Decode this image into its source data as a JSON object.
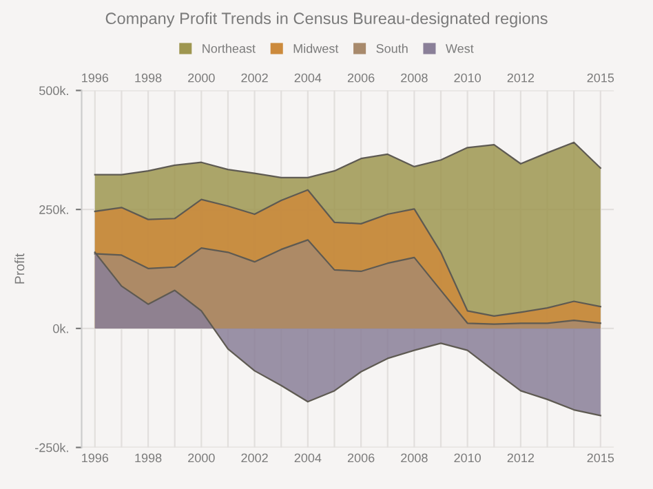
{
  "chart_data": {
    "type": "area",
    "title": "Company Profit Trends in Census Bureau-designated regions",
    "ylabel": "Profit",
    "categories": [
      "1996",
      null,
      "1998",
      null,
      "2000",
      null,
      "2002",
      null,
      "2004",
      null,
      "2006",
      null,
      "2008",
      null,
      "2010",
      null,
      "2012",
      null,
      null,
      "2015"
    ],
    "series": [
      {
        "name": "Northeast",
        "color": "#9e9650",
        "values": [
          323000,
          323000,
          331000,
          343000,
          349000,
          334000,
          326000,
          317000,
          317000,
          331000,
          357000,
          366000,
          340000,
          354000,
          380000,
          386000,
          346000,
          369000,
          391000,
          337000
        ]
      },
      {
        "name": "Midwest",
        "color": "#cc8a3c",
        "values": [
          246000,
          254000,
          229000,
          231000,
          271000,
          257000,
          240000,
          269000,
          291000,
          223000,
          220000,
          240000,
          251000,
          160000,
          37000,
          26000,
          34000,
          43000,
          57000,
          46000
        ]
      },
      {
        "name": "South",
        "color": "#a88a6c",
        "values": [
          157000,
          154000,
          126000,
          129000,
          169000,
          160000,
          140000,
          166000,
          186000,
          123000,
          120000,
          137000,
          149000,
          80000,
          11000,
          9000,
          11000,
          11000,
          17000,
          11000
        ]
      },
      {
        "name": "West",
        "color": "#8a7f98",
        "values": [
          160000,
          89000,
          51000,
          80000,
          37000,
          -43000,
          -89000,
          -120000,
          -154000,
          -131000,
          -91000,
          -63000,
          -46000,
          -31000,
          -46000,
          -89000,
          -131000,
          -149000,
          -171000,
          -183000
        ]
      }
    ],
    "ylim": [
      -250000,
      500000
    ],
    "yticks": [
      {
        "value": -250000,
        "label": "-250k."
      },
      {
        "value": 0,
        "label": "0k."
      },
      {
        "value": 250000,
        "label": "250k."
      },
      {
        "value": 500000,
        "label": "500k."
      }
    ],
    "grid": true,
    "legend": "top"
  }
}
